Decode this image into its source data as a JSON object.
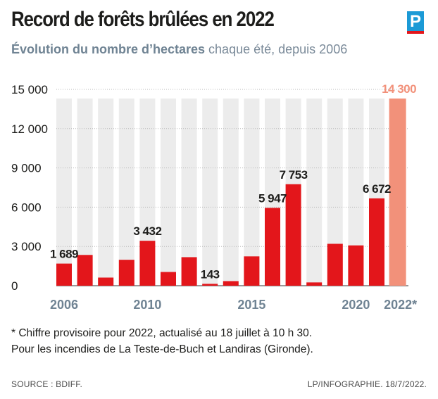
{
  "header": {
    "title": "Record de forêts brûlées en 2022",
    "subtitle_bold": "Évolution du nombre d’hectares",
    "subtitle_rest": " chaque été, depuis 2006",
    "logo_letter": "P"
  },
  "colors": {
    "bar": "#e3161b",
    "bar_provisional": "#f2917a",
    "column_bg": "#ececec",
    "axis_labels": "#6f8393",
    "logo_blue": "#1b9ad6"
  },
  "chart_data": {
    "type": "bar",
    "categories": [
      "2006",
      "2007",
      "2008",
      "2009",
      "2010",
      "2011",
      "2012",
      "2013",
      "2014",
      "2015",
      "2016",
      "2017",
      "2018",
      "2019",
      "2020",
      "2021",
      "2022*"
    ],
    "values": [
      1689,
      2350,
      620,
      1980,
      3432,
      1050,
      2180,
      143,
      350,
      2240,
      5947,
      7753,
      250,
      3200,
      3080,
      6672,
      14300
    ],
    "provisional": [
      false,
      false,
      false,
      false,
      false,
      false,
      false,
      false,
      false,
      false,
      false,
      false,
      false,
      false,
      false,
      false,
      true
    ],
    "data_labels": [
      {
        "index": 0,
        "text": "1 689"
      },
      {
        "index": 4,
        "text": "3 432"
      },
      {
        "index": 7,
        "text": "143"
      },
      {
        "index": 10,
        "text": "5 947"
      },
      {
        "index": 11,
        "text": "7 753"
      },
      {
        "index": 15,
        "text": "6 672"
      },
      {
        "index": 16,
        "text": "14 300"
      }
    ],
    "x_tick_labels": [
      {
        "index": 0,
        "text": "2006"
      },
      {
        "index": 4,
        "text": "2010"
      },
      {
        "index": 9,
        "text": "2015"
      },
      {
        "index": 14,
        "text": "2020"
      },
      {
        "index": 16,
        "text": "2022*"
      }
    ],
    "y_ticks": [
      {
        "value": 0,
        "label": "0"
      },
      {
        "value": 3000,
        "label": "3 000"
      },
      {
        "value": 6000,
        "label": "6 000"
      },
      {
        "value": 9000,
        "label": "9 000"
      },
      {
        "value": 12000,
        "label": "12 000"
      },
      {
        "value": 15000,
        "label": "15 000"
      }
    ],
    "ylim": [
      0,
      15000
    ],
    "grid": true
  },
  "notes": {
    "line1": "* Chiffre provisoire pour 2022, actualisé au 18 juillet à 10 h 30.",
    "line2": "Pour les incendies de La Teste-de-Buch et Landiras (Gironde)."
  },
  "footer": {
    "source": "SOURCE : BDIFF.",
    "credit": "LP/INFOGRAPHIE. 18/7/2022."
  }
}
